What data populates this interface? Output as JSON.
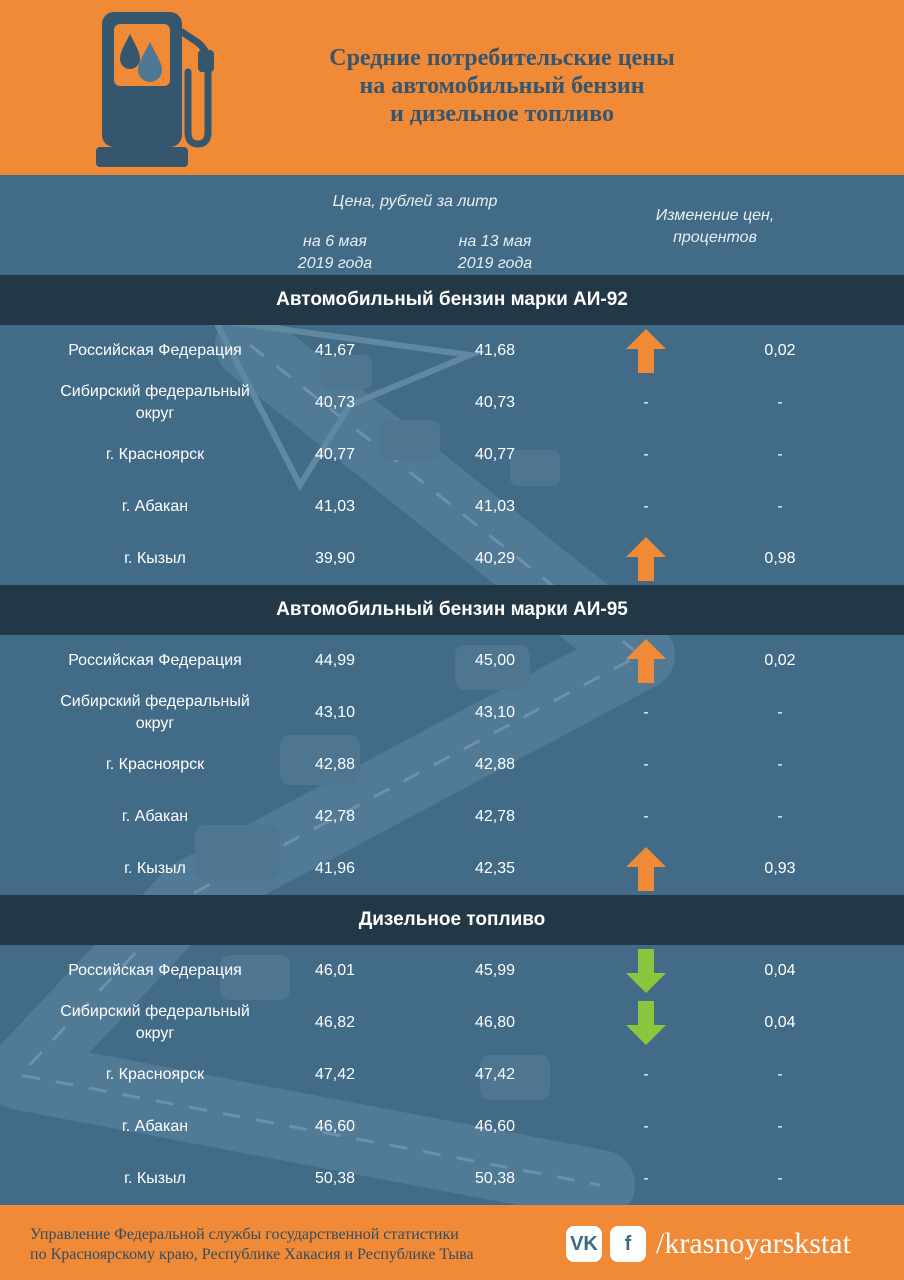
{
  "title": {
    "line1": "Средние потребительские цены",
    "line2": "на автомобильный бензин",
    "line3": "и дизельное топливо"
  },
  "columns": {
    "price_header": "Цена, рублей за литр",
    "date1_line1": "на 6 мая",
    "date1_line2": "2019 года",
    "date2_line1": "на 13 мая",
    "date2_line2": "2019 года",
    "change_line1": "Изменение цен,",
    "change_line2": "процентов"
  },
  "sections": [
    {
      "title": "Автомобильный бензин марки АИ-92",
      "rows": [
        {
          "region": "Российская Федерация",
          "v1": "41,67",
          "v2": "41,68",
          "direction": "up",
          "dir_text": "",
          "change": "0,02"
        },
        {
          "region": "Сибирский федеральный округ",
          "v1": "40,73",
          "v2": "40,73",
          "direction": "none",
          "dir_text": "-",
          "change": "-"
        },
        {
          "region": "г. Красноярск",
          "v1": "40,77",
          "v2": "40,77",
          "direction": "none",
          "dir_text": "-",
          "change": "-"
        },
        {
          "region": "г. Абакан",
          "v1": "41,03",
          "v2": "41,03",
          "direction": "none",
          "dir_text": "-",
          "change": "-"
        },
        {
          "region": "г. Кызыл",
          "v1": "39,90",
          "v2": "40,29",
          "direction": "up",
          "dir_text": "",
          "change": "0,98"
        }
      ]
    },
    {
      "title": "Автомобильный бензин марки АИ-95",
      "rows": [
        {
          "region": "Российская Федерация",
          "v1": "44,99",
          "v2": "45,00",
          "direction": "up",
          "dir_text": "",
          "change": "0,02"
        },
        {
          "region": "Сибирский федеральный округ",
          "v1": "43,10",
          "v2": "43,10",
          "direction": "none",
          "dir_text": "-",
          "change": "-"
        },
        {
          "region": "г. Красноярск",
          "v1": "42,88",
          "v2": "42,88",
          "direction": "none",
          "dir_text": "-",
          "change": "-"
        },
        {
          "region": "г. Абакан",
          "v1": "42,78",
          "v2": "42,78",
          "direction": "none",
          "dir_text": "-",
          "change": "-"
        },
        {
          "region": "г. Кызыл",
          "v1": "41,96",
          "v2": "42,35",
          "direction": "up",
          "dir_text": "",
          "change": "0,93"
        }
      ]
    },
    {
      "title": "Дизельное топливо",
      "rows": [
        {
          "region": "Российская Федерация",
          "v1": "46,01",
          "v2": "45,99",
          "direction": "down",
          "dir_text": "",
          "change": "0,04"
        },
        {
          "region": "Сибирский федеральный округ",
          "v1": "46,82",
          "v2": "46,80",
          "direction": "down",
          "dir_text": "",
          "change": "0,04"
        },
        {
          "region": "г. Красноярск",
          "v1": "47,42",
          "v2": "47,42",
          "direction": "none",
          "dir_text": "-",
          "change": "-"
        },
        {
          "region": "г. Абакан",
          "v1": "46,60",
          "v2": "46,60",
          "direction": "none",
          "dir_text": "-",
          "change": "-"
        },
        {
          "region": "г. Кызыл",
          "v1": "50,38",
          "v2": "50,38",
          "direction": "none",
          "dir_text": "-",
          "change": "-"
        }
      ]
    }
  ],
  "footer": {
    "line1": "Управление Федеральной службы государственной статистики",
    "line2": "по Красноярскому краю, Республике Хакасия и Республике Тыва",
    "vk_icon": "vk-icon",
    "fb_icon": "facebook-icon",
    "handle": "/krasnoyarskstat"
  },
  "colors": {
    "orange": "#f08a37",
    "blue": "#426b88",
    "dark_band": "#233847",
    "arrow_up": "#f08a37",
    "arrow_down": "#8cc63f"
  }
}
